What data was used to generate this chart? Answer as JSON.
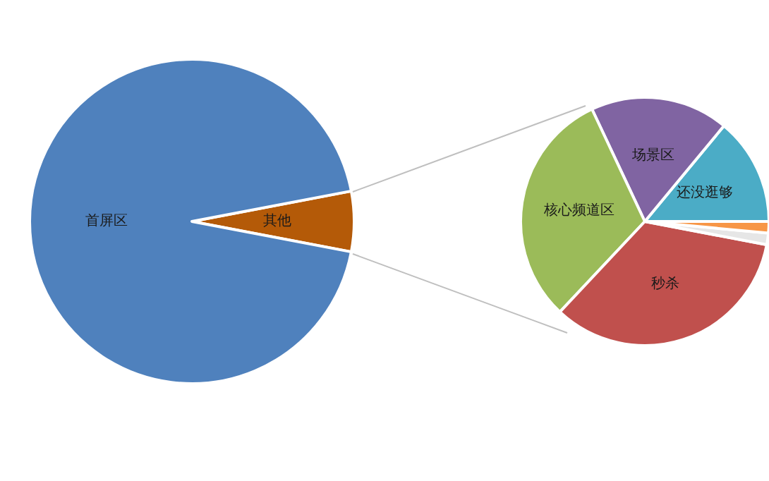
{
  "chart_data": [
    {
      "type": "pie",
      "categories": [
        "其他",
        "首屏区"
      ],
      "values": [
        6,
        94
      ],
      "colors": [
        "#b45a08",
        "#4f81bd"
      ],
      "legend": false
    },
    {
      "type": "pie",
      "categories": [
        "还没逛够",
        "场景区",
        "核心频道区",
        "秒杀",
        null,
        null
      ],
      "values": [
        14,
        18,
        31,
        34,
        1.5,
        1.5
      ],
      "colors": [
        "#4bacc6",
        "#8064a2",
        "#9bbb59",
        "#c0504d",
        "#e6e6e6",
        "#f79646"
      ],
      "legend": false
    }
  ]
}
